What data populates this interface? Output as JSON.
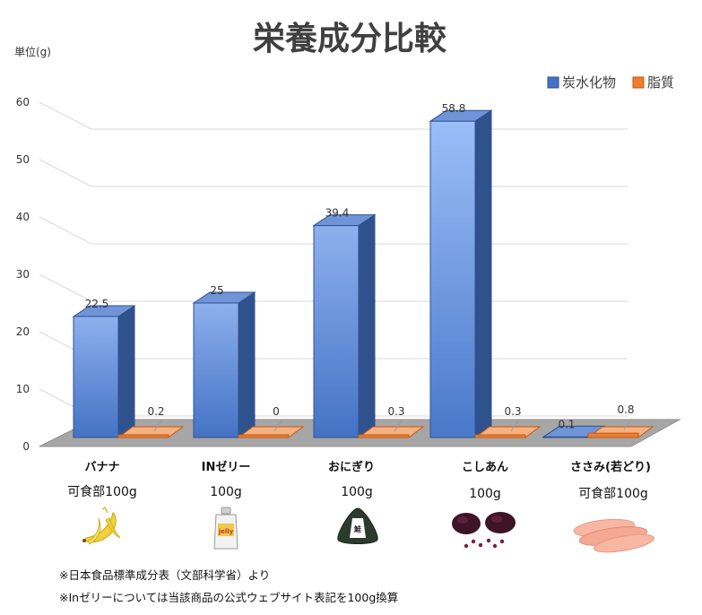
{
  "chart_data": {
    "type": "bar",
    "title": "栄養成分比較",
    "unit_label": "単位(g)",
    "ylim": [
      0,
      60
    ],
    "yticks": [
      "0",
      "10",
      "20",
      "30",
      "40",
      "50",
      "60"
    ],
    "grid": true,
    "legend_position": "top-right",
    "categories": [
      "バナナ",
      "INゼリー",
      "おにぎり",
      "こしあん",
      "ささみ(若どり)"
    ],
    "category_subtitles": [
      "可食部100g",
      "100g",
      "100g",
      "100g",
      "可食部100g"
    ],
    "series": [
      {
        "name": "炭水化物",
        "values": [
          22.5,
          25,
          39.4,
          58.8,
          0.1
        ],
        "labels": [
          "22.5",
          "25",
          "39.4",
          "58.8",
          "0.1"
        ]
      },
      {
        "name": "脂質",
        "values": [
          0.2,
          0,
          0.3,
          0.3,
          0.8
        ],
        "labels": [
          "0.2",
          "0",
          "0.3",
          "0.3",
          "0.8"
        ]
      }
    ],
    "notes": [
      "※日本食品標準成分表（文部科学省）より",
      "※Inゼリーについては当該商品の公式ウェブサイト表記を100g換算"
    ]
  },
  "colors": {
    "carb": "#4472C4",
    "fat": "#ED7D31",
    "floor": "#A6A6A6",
    "grid": "#D9D9D9"
  },
  "icons": [
    "banana-icon",
    "jelly-pouch-icon",
    "onigiri-icon",
    "koshian-icon",
    "chicken-breast-icon"
  ]
}
